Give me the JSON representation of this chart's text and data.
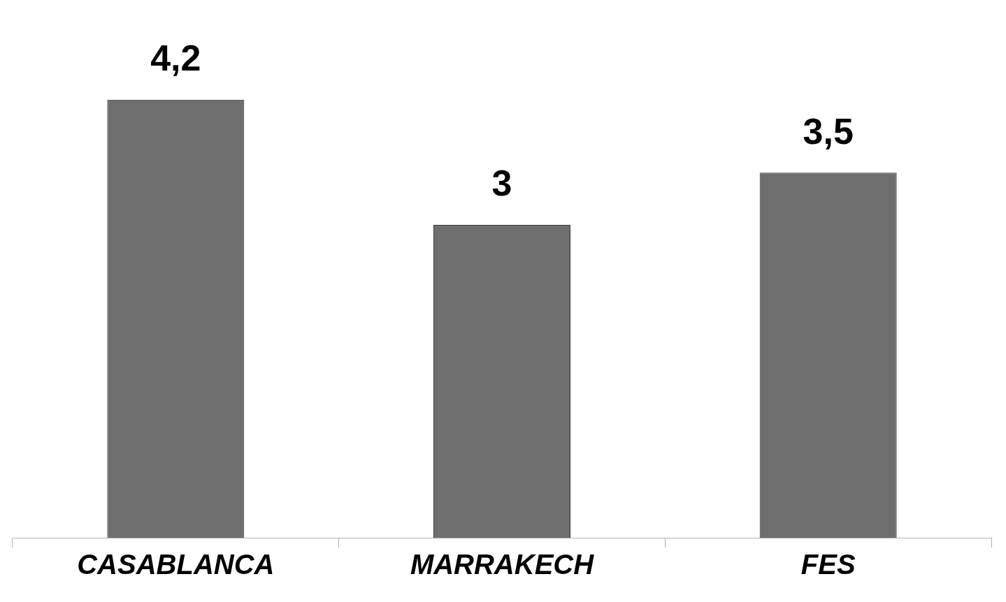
{
  "chart_data": {
    "type": "bar",
    "categories": [
      "CASABLANCA",
      "MARRAKECH",
      "FES"
    ],
    "values": [
      4.2,
      3,
      3.5
    ],
    "value_labels": [
      "4,2",
      "3",
      "3,5"
    ],
    "color": "#6e6e6e",
    "grid": false,
    "legend": false
  }
}
